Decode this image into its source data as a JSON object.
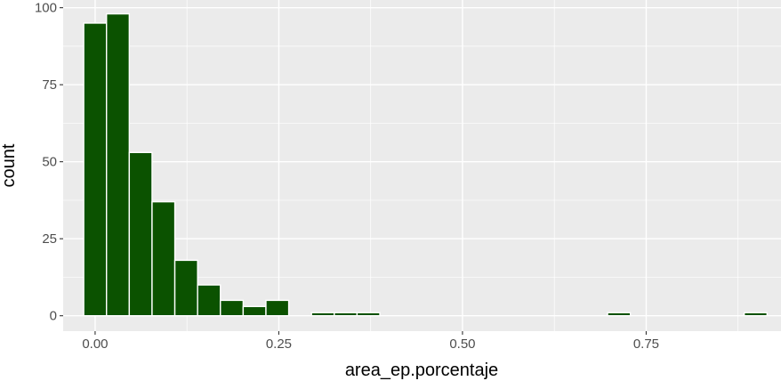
{
  "chart_data": {
    "type": "bar",
    "subtype": "histogram",
    "title": "",
    "xlabel": "area_ep.porcentaje",
    "ylabel": "count",
    "xlim": [
      -0.0435,
      0.9335
    ],
    "ylim": [
      -5,
      102.5
    ],
    "x_ticks": [
      {
        "value": 0.0,
        "label": "0.00"
      },
      {
        "value": 0.25,
        "label": "0.25"
      },
      {
        "value": 0.5,
        "label": "0.50"
      },
      {
        "value": 0.75,
        "label": "0.75"
      }
    ],
    "y_ticks": [
      {
        "value": 0,
        "label": "0"
      },
      {
        "value": 25,
        "label": "25"
      },
      {
        "value": 50,
        "label": "50"
      },
      {
        "value": 75,
        "label": "75"
      },
      {
        "value": 100,
        "label": "100"
      }
    ],
    "bin_width": 0.031,
    "bin_centers": [
      0.0,
      0.031,
      0.062,
      0.093,
      0.124,
      0.155,
      0.186,
      0.217,
      0.248,
      0.279,
      0.31,
      0.341,
      0.372,
      0.403,
      0.434,
      0.465,
      0.496,
      0.527,
      0.558,
      0.589,
      0.62,
      0.651,
      0.682,
      0.713,
      0.744,
      0.775,
      0.806,
      0.837,
      0.868,
      0.899
    ],
    "values": [
      95,
      98,
      53,
      37,
      18,
      10,
      5,
      3,
      5,
      0,
      1,
      1,
      1,
      0,
      0,
      0,
      0,
      0,
      0,
      0,
      0,
      0,
      0,
      1,
      0,
      0,
      0,
      0,
      0,
      1
    ],
    "colors": {
      "panel_background": "#EBEBEB",
      "gridline": "#FFFFFF",
      "bar_fill": "#0B5200",
      "bar_outline": "#FFFFFF",
      "tick_text": "#4D4D4D",
      "axis_title": "#000000"
    },
    "grid": true,
    "legend": "none"
  }
}
